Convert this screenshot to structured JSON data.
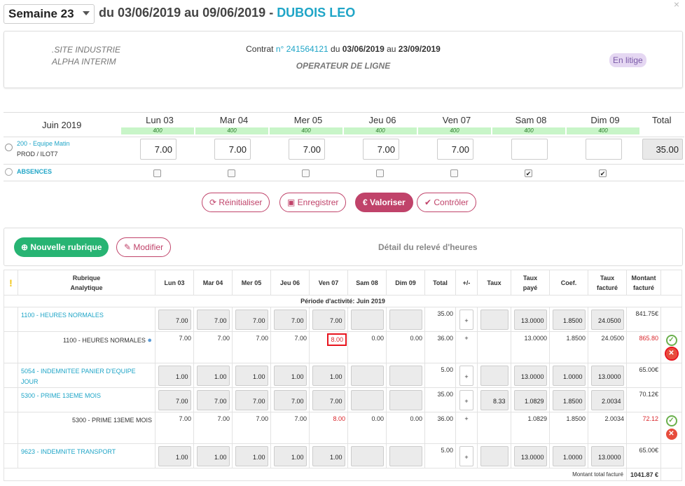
{
  "header": {
    "week": "Semaine 23",
    "range": "du 03/06/2019 au 09/06/2019",
    "sep": " - ",
    "person": "DUBOIS LEO",
    "close": "×"
  },
  "contract": {
    "site": ".SITE INDUSTRIE",
    "agency": "ALPHA INTERIM",
    "prefix": "Contrat ",
    "num_label": "n° 241564121",
    "from_label": " du ",
    "from": "03/06/2019",
    "to_label": " au ",
    "to": "23/09/2019",
    "job": "OPERATEUR DE LIGNE",
    "status": "En litige"
  },
  "week_grid": {
    "month": "Juin 2019",
    "days": [
      {
        "label": "Lun 03",
        "quota": "400"
      },
      {
        "label": "Mar 04",
        "quota": "400"
      },
      {
        "label": "Mer 05",
        "quota": "400"
      },
      {
        "label": "Jeu 06",
        "quota": "400"
      },
      {
        "label": "Ven 07",
        "quota": "400"
      },
      {
        "label": "Sam 08",
        "quota": "400"
      },
      {
        "label": "Dim 09",
        "quota": "400"
      }
    ],
    "total_label": "Total",
    "team": {
      "name": "200 - Equipe Matin",
      "sub": "PROD / ILOT7",
      "values": [
        "7.00",
        "7.00",
        "7.00",
        "7.00",
        "7.00",
        "",
        ""
      ],
      "total": "35.00"
    },
    "absences": {
      "label": "ABSENCES",
      "checked": [
        false,
        false,
        false,
        false,
        false,
        true,
        true
      ]
    }
  },
  "actions": {
    "reset": "Réinitialiser",
    "save": "Enregistrer",
    "valorise": "€ Valoriser",
    "control": "Contrôler"
  },
  "detail": {
    "new_rubric": "Nouvelle rubrique",
    "modify": "Modifier",
    "title": "Détail du relevé d'heures"
  },
  "table": {
    "headers": {
      "rubric1": "Rubrique",
      "rubric2": "Analytique",
      "days": [
        "Lun 03",
        "Mar 04",
        "Mer 05",
        "Jeu 06",
        "Ven 07",
        "Sam 08",
        "Dim 09"
      ],
      "total": "Total",
      "pm": "+/-",
      "taux": "Taux",
      "tp1": "Taux",
      "tp2": "payé",
      "coef": "Coef.",
      "tf1": "Taux",
      "tf2": "facturé",
      "mf1": "Montant",
      "mf2": "facturé"
    },
    "period": "Période d'activité: Juin 2019",
    "rows": [
      {
        "label": "1100 - HEURES NORMALES",
        "days": [
          "7.00",
          "7.00",
          "7.00",
          "7.00",
          "7.00",
          "",
          ""
        ],
        "total": "35.00",
        "pm": "+",
        "taux": "",
        "tp": "13.0000",
        "coef": "1.8500",
        "tf": "24.0500",
        "amount": "841.75€"
      },
      {
        "label": "1100 - HEURES NORMALES",
        "days": [
          "7.00",
          "7.00",
          "7.00",
          "7.00",
          "8.00",
          "0.00",
          "0.00"
        ],
        "total": "36.00",
        "pm": "+",
        "taux": "",
        "tp": "13.0000",
        "coef": "1.8500",
        "tf": "24.0500",
        "amount": "865.80"
      },
      {
        "label": "5054 - INDEMNITEE PANIER D'EQUIPE JOUR",
        "days": [
          "1.00",
          "1.00",
          "1.00",
          "1.00",
          "1.00",
          "",
          ""
        ],
        "total": "5.00",
        "pm": "+",
        "taux": "",
        "tp": "13.0000",
        "coef": "1.0000",
        "tf": "13.0000",
        "amount": "65.00€"
      },
      {
        "label": "5300 - PRIME 13EME MOIS",
        "days": [
          "7.00",
          "7.00",
          "7.00",
          "7.00",
          "7.00",
          "",
          ""
        ],
        "total": "35.00",
        "pm": "+",
        "taux": "8.33",
        "tp": "1.0829",
        "coef": "1.8500",
        "tf": "2.0034",
        "amount": "70.12€"
      },
      {
        "label": "5300 - PRIME 13EME MOIS",
        "days": [
          "7.00",
          "7.00",
          "7.00",
          "7.00",
          "8.00",
          "0.00",
          "0.00"
        ],
        "total": "36.00",
        "pm": "+",
        "taux": "",
        "tp": "1.0829",
        "coef": "1.8500",
        "tf": "2.0034",
        "amount": "72.12"
      },
      {
        "label": "9623 - INDEMNITE TRANSPORT",
        "days": [
          "1.00",
          "1.00",
          "1.00",
          "1.00",
          "1.00",
          "",
          ""
        ],
        "total": "5.00",
        "pm": "+",
        "taux": "",
        "tp": "13.0000",
        "coef": "1.0000",
        "tf": "13.0000",
        "amount": "65.00€"
      }
    ],
    "footer_label": "Montant total facturé",
    "footer_value": "1041.87 €"
  },
  "colors": {
    "accent": "#1fa5c7",
    "brand": "#c0436a",
    "green": "#27b473",
    "error": "#d9262b"
  }
}
